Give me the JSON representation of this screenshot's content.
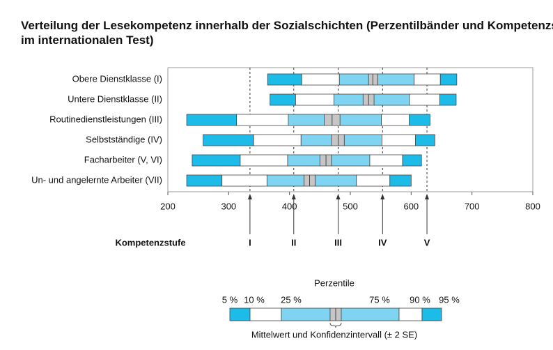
{
  "chart_data": {
    "type": "percentile_band",
    "title": [
      "Verteilung der Lesekompetenz innerhalb der Sozialschichten (Perzentilbänder und Kompetenzstufen",
      "im internationalen Test)"
    ],
    "xlim": [
      200,
      800
    ],
    "xticks": [
      200,
      300,
      400,
      500,
      600,
      700,
      800
    ],
    "rows": [
      {
        "label": "Obere Dienstklasse (I)",
        "p5": 364,
        "p10": 420,
        "p25": 482,
        "ci_low": 530,
        "mean": 537,
        "ci_high": 545,
        "p75": 605,
        "p90": 648,
        "p95": 675
      },
      {
        "label": "Untere Dienstklasse (II)",
        "p5": 368,
        "p10": 410,
        "p25": 473,
        "ci_low": 521,
        "mean": 530,
        "ci_high": 539,
        "p75": 597,
        "p90": 647,
        "p95": 674
      },
      {
        "label": "Routinedienstleistungen (III)",
        "p5": 231,
        "p10": 313,
        "p25": 398,
        "ci_low": 457,
        "mean": 470,
        "ci_high": 483,
        "p75": 551,
        "p90": 597,
        "p95": 631
      },
      {
        "label": "Selbstständige (IV)",
        "p5": 258,
        "p10": 341,
        "p25": 419,
        "ci_low": 469,
        "mean": 480,
        "ci_high": 490,
        "p75": 552,
        "p90": 607,
        "p95": 639
      },
      {
        "label": "Facharbeiter (V, VI)",
        "p5": 240,
        "p10": 319,
        "p25": 397,
        "ci_low": 450,
        "mean": 460,
        "ci_high": 469,
        "p75": 532,
        "p90": 586,
        "p95": 617
      },
      {
        "label": "Un- und angelernte Arbeiter (VII)",
        "p5": 231,
        "p10": 289,
        "p25": 363,
        "ci_low": 424,
        "mean": 433,
        "ci_high": 442,
        "p75": 510,
        "p90": 565,
        "p95": 600
      }
    ],
    "colors": {
      "outer": "#1cbbe8",
      "middle": "#ffffff",
      "inner": "#7fd5f1",
      "ci": "#c6c6c6"
    },
    "levels_title": "Kompetenzstufe",
    "levels": [
      {
        "value": 335,
        "label": "I"
      },
      {
        "value": 407,
        "label": "II"
      },
      {
        "value": 480,
        "label": "III"
      },
      {
        "value": 553,
        "label": "IV"
      },
      {
        "value": 626,
        "label": "V"
      }
    ],
    "legend": {
      "title": "Perzentile",
      "labels": [
        "5 %",
        "10 %",
        "25 %",
        "75 %",
        "90 %",
        "95 %"
      ],
      "ci_label": "Mittelwert und Konfidenzintervall (± 2 SE)"
    }
  }
}
